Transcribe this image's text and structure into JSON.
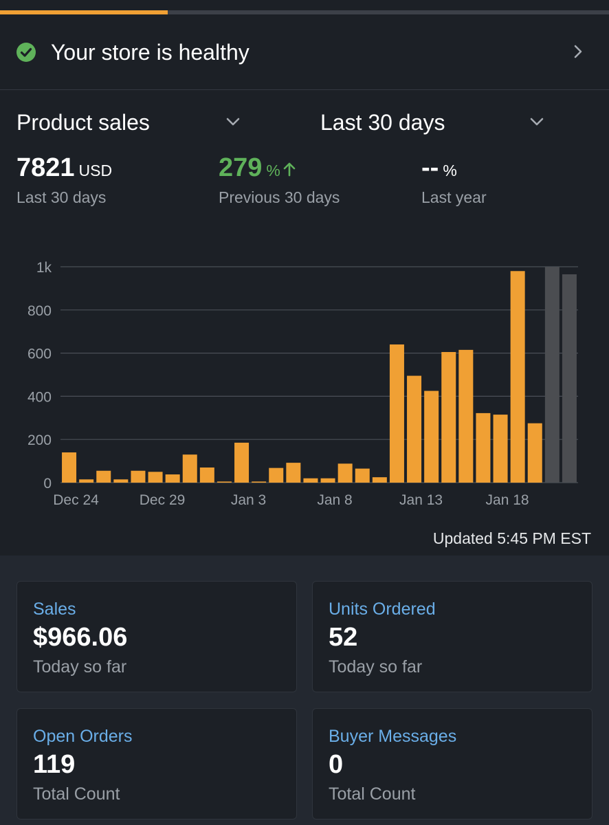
{
  "progress": {
    "fraction": 0.275,
    "color": "#f0a034"
  },
  "health": {
    "icon": "check-circle-icon",
    "text": "Your store is healthy"
  },
  "selectors": {
    "metric": "Product sales",
    "range": "Last 30 days"
  },
  "metrics": {
    "current": {
      "value": "7821",
      "unit": "USD",
      "label": "Last 30 days"
    },
    "previous": {
      "value": "279",
      "unit": "%",
      "label": "Previous 30 days",
      "trend": "up"
    },
    "last_year": {
      "value": "--",
      "unit": "%",
      "label": "Last year"
    }
  },
  "chart_data": {
    "type": "bar",
    "ylim": [
      0,
      1000
    ],
    "yticks": [
      0,
      200,
      400,
      600,
      800,
      1000
    ],
    "ytick_labels": [
      "0",
      "200",
      "400",
      "600",
      "800",
      "1k"
    ],
    "xtick_labels": [
      "Dec 24",
      "Dec 29",
      "Jan 3",
      "Jan 8",
      "Jan 13",
      "Jan 18"
    ],
    "xtick_indices": [
      0,
      5,
      10,
      15,
      20,
      25
    ],
    "values": [
      140,
      15,
      55,
      15,
      55,
      50,
      38,
      130,
      70,
      5,
      185,
      5,
      68,
      92,
      20,
      20,
      88,
      65,
      25,
      640,
      495,
      425,
      605,
      615,
      322,
      315,
      980,
      275,
      1000,
      965
    ],
    "projected_from_index": 28,
    "colors": {
      "bar": "#f0a034",
      "projected": "#4b4d51",
      "grid": "#4a4f57",
      "axis_text": "#9aa0a7"
    }
  },
  "updated": "Updated 5:45 PM EST",
  "cards": [
    {
      "title": "Sales",
      "value": "$966.06",
      "sub": "Today so far"
    },
    {
      "title": "Units Ordered",
      "value": "52",
      "sub": "Today so far"
    },
    {
      "title": "Open Orders",
      "value": "119",
      "sub": "Total Count"
    },
    {
      "title": "Buyer Messages",
      "value": "0",
      "sub": "Total Count"
    }
  ]
}
